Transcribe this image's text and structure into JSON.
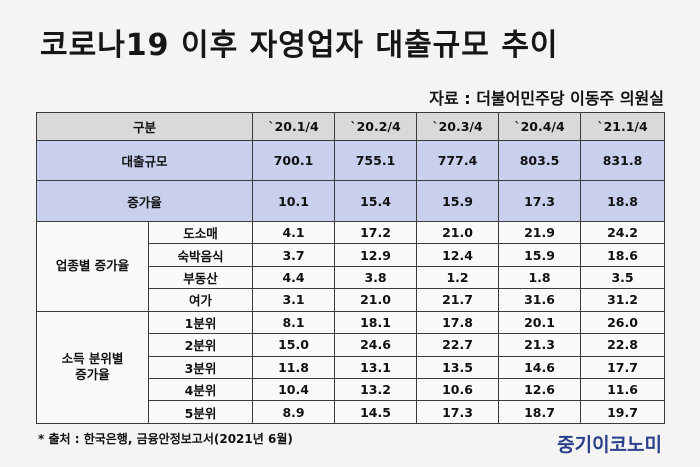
{
  "title": "코로나19 이후 자영업자 대출규모 추이",
  "source": "자료 : 더불어민주당 이동주 의원실",
  "table": {
    "header": [
      "구분",
      "`20.1/4",
      "`20.2/4",
      "`20.3/4",
      "`20.4/4",
      "`21.1/4"
    ],
    "loan_row": {
      "label": "대출규모",
      "values": [
        "700.1",
        "755.1",
        "777.4",
        "803.5",
        "831.8"
      ]
    },
    "growth_row": {
      "label": "증가율",
      "values": [
        "10.1",
        "15.4",
        "15.9",
        "17.3",
        "18.8"
      ]
    },
    "industry_group": {
      "label": "업종별 증가율",
      "rows": [
        {
          "label": "도소매",
          "values": [
            "4.1",
            "17.2",
            "21.0",
            "21.9",
            "24.2"
          ]
        },
        {
          "label": "숙박음식",
          "values": [
            "3.7",
            "12.9",
            "12.4",
            "15.9",
            "18.6"
          ]
        },
        {
          "label": "부동산",
          "values": [
            "4.4",
            "3.8",
            "1.2",
            "1.8",
            "3.5"
          ]
        },
        {
          "label": "여가",
          "values": [
            "3.1",
            "21.0",
            "21.7",
            "31.6",
            "31.2"
          ]
        }
      ]
    },
    "income_group": {
      "label_line1": "소득 분위별",
      "label_line2": "증가율",
      "rows": [
        {
          "label": "1분위",
          "values": [
            "8.1",
            "18.1",
            "17.8",
            "20.1",
            "26.0"
          ]
        },
        {
          "label": "2분위",
          "values": [
            "15.0",
            "24.6",
            "22.7",
            "21.3",
            "22.8"
          ]
        },
        {
          "label": "3분위",
          "values": [
            "11.8",
            "13.1",
            "13.5",
            "14.6",
            "17.7"
          ]
        },
        {
          "label": "4분위",
          "values": [
            "10.4",
            "13.2",
            "10.6",
            "12.6",
            "11.6"
          ]
        },
        {
          "label": "5분위",
          "values": [
            "8.9",
            "14.5",
            "17.3",
            "18.7",
            "19.7"
          ]
        }
      ]
    }
  },
  "footnote": "* 출처 : 한국은행, 금융안정보고서(2021년 6월)",
  "logo": "중기이코노미",
  "colors": {
    "header_bg": "#d9d9d9",
    "highlight_bg": "#c8d0ee",
    "logo": "#2b3f8a"
  }
}
